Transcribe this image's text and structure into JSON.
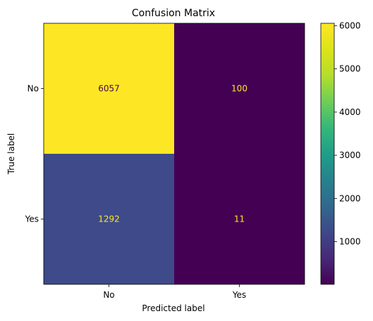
{
  "chart_data": {
    "type": "heatmap",
    "title": "Confusion Matrix",
    "xlabel": "Predicted label",
    "ylabel": "True label",
    "x_categories": [
      "No",
      "Yes"
    ],
    "y_categories": [
      "No",
      "Yes"
    ],
    "values": [
      [
        6057,
        100
      ],
      [
        1292,
        11
      ]
    ],
    "value_labels": [
      [
        "6057",
        "100"
      ],
      [
        "1292",
        "11"
      ]
    ],
    "colormap": "viridis",
    "colorbar": {
      "ticks": [
        1000,
        2000,
        3000,
        4000,
        5000,
        6000
      ],
      "tick_labels": [
        "1000",
        "2000",
        "3000",
        "4000",
        "5000",
        "6000"
      ]
    },
    "colors": {
      "cell_0_0": "#fde725",
      "cell_0_1": "#440154",
      "cell_1_0": "#3e4a89",
      "cell_1_1": "#440154",
      "text_on_light": "#440154",
      "text_on_dark": "#fde725"
    }
  }
}
